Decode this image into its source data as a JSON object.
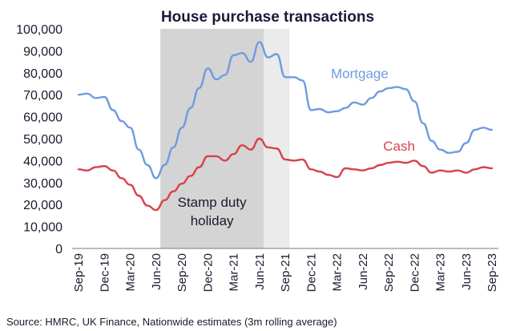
{
  "chart_data": {
    "type": "line",
    "title": "House purchase transactions",
    "source": "Source: HMRC, UK Finance, Nationwide estimates (3m rolling average)",
    "ylim": [
      0,
      100000
    ],
    "ytick_labels": [
      "0",
      "10,000",
      "20,000",
      "30,000",
      "40,000",
      "50,000",
      "60,000",
      "70,000",
      "80,000",
      "90,000",
      "100,000"
    ],
    "ytick_values": [
      0,
      10000,
      20000,
      30000,
      40000,
      50000,
      60000,
      70000,
      80000,
      90000,
      100000
    ],
    "x": [
      "Sep-19",
      "Oct-19",
      "Nov-19",
      "Dec-19",
      "Jan-20",
      "Feb-20",
      "Mar-20",
      "Apr-20",
      "May-20",
      "Jun-20",
      "Jul-20",
      "Aug-20",
      "Sep-20",
      "Oct-20",
      "Nov-20",
      "Dec-20",
      "Jan-21",
      "Feb-21",
      "Mar-21",
      "Apr-21",
      "May-21",
      "Jun-21",
      "Jul-21",
      "Aug-21",
      "Sep-21",
      "Oct-21",
      "Nov-21",
      "Dec-21",
      "Jan-22",
      "Feb-22",
      "Mar-22",
      "Apr-22",
      "May-22",
      "Jun-22",
      "Jul-22",
      "Aug-22",
      "Sep-22",
      "Oct-22",
      "Nov-22",
      "Dec-22",
      "Jan-23",
      "Feb-23",
      "Mar-23",
      "Apr-23",
      "May-23",
      "Jun-23",
      "Jul-23",
      "Aug-23",
      "Sep-23"
    ],
    "xtick_labels": [
      "Sep-19",
      "Dec-19",
      "Mar-20",
      "Jun-20",
      "Sep-20",
      "Dec-20",
      "Mar-21",
      "Jun-21",
      "Sep-21",
      "Dec-21",
      "Mar-22",
      "Jun-22",
      "Sep-22",
      "Dec-22",
      "Mar-23",
      "Jun-23",
      "Sep-23"
    ],
    "series": [
      {
        "name": "Mortgage",
        "color": "#6f9be0",
        "values": [
          70000,
          70500,
          68500,
          69000,
          63000,
          58000,
          55000,
          45000,
          38000,
          32000,
          38000,
          46000,
          55000,
          64000,
          73000,
          82000,
          77000,
          79000,
          88000,
          89000,
          85000,
          94000,
          87000,
          88500,
          78000,
          78000,
          76500,
          63000,
          63500,
          62000,
          62500,
          64000,
          66500,
          65500,
          68500,
          71500,
          73000,
          73500,
          72500,
          67000,
          57000,
          49000,
          45000,
          43500,
          44000,
          48000,
          54000,
          55000,
          54000
        ]
      },
      {
        "name": "Cash",
        "color": "#d9414b",
        "values": [
          36000,
          35500,
          37000,
          37500,
          35500,
          32000,
          29000,
          24000,
          19500,
          17500,
          22000,
          26000,
          29500,
          33000,
          37000,
          42000,
          42000,
          40000,
          43000,
          47000,
          45000,
          50000,
          46000,
          45500,
          40500,
          40000,
          40500,
          36000,
          35000,
          33500,
          32500,
          36500,
          36000,
          35500,
          36500,
          38000,
          39000,
          39500,
          39000,
          40000,
          37500,
          34500,
          35500,
          35000,
          35500,
          34500,
          36000,
          37000,
          36500
        ]
      }
    ],
    "annotations": {
      "stamp_duty_line1": "Stamp duty",
      "stamp_duty_line2": "holiday",
      "stamp_duty_start": "Jul-20",
      "stamp_duty_dark_end": "Jun-21",
      "stamp_duty_light_end": "Sep-21"
    },
    "band_colors": {
      "dark": "#d4d4d4",
      "light": "#ebebeb"
    },
    "grid": false,
    "legend": "inline-labels"
  }
}
